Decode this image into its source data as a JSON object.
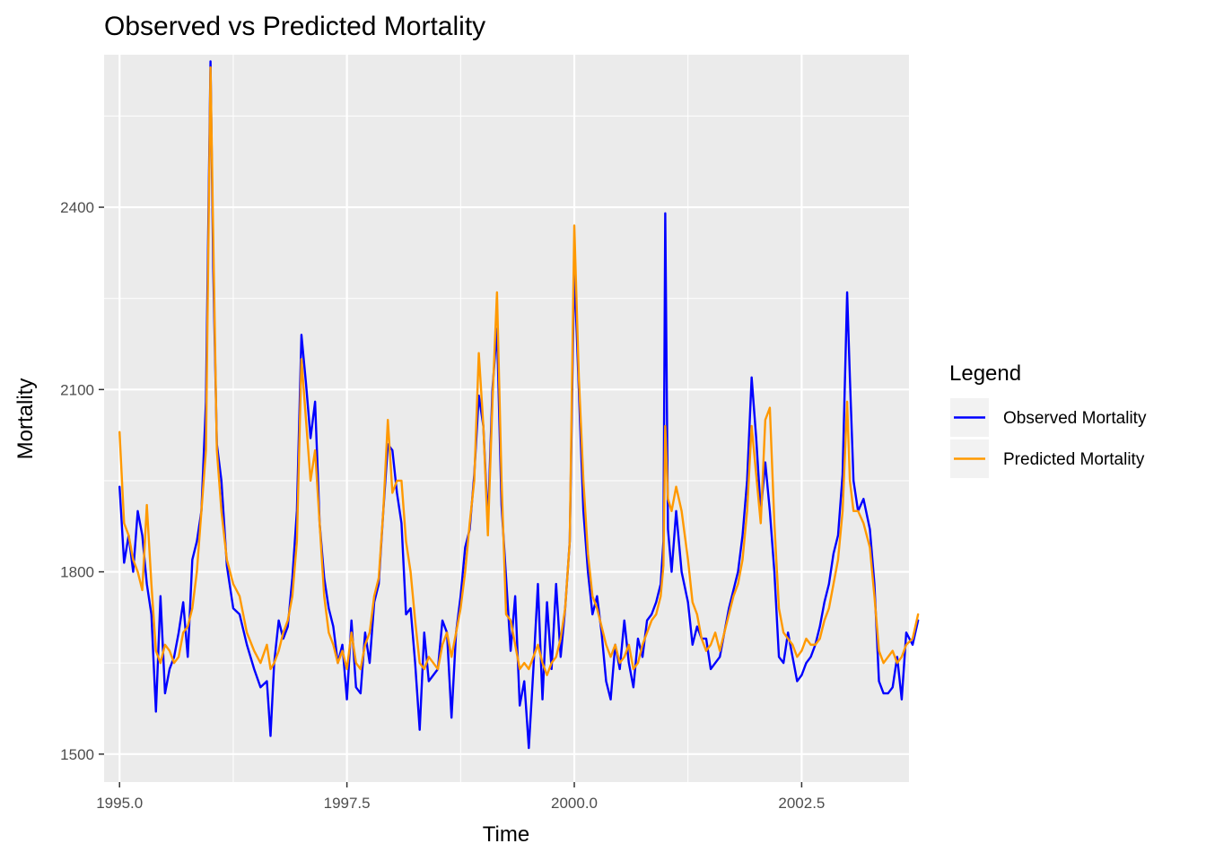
{
  "chart_data": {
    "type": "line",
    "title": "Observed vs Predicted Mortality",
    "xlabel": "Time",
    "ylabel": "Mortality",
    "xlim": [
      1994.83,
      2003.68
    ],
    "ylim": [
      1454,
      2651
    ],
    "x_ticks": [
      1995.0,
      1997.5,
      2000.0,
      2002.5
    ],
    "x_tick_labels": [
      "1995.0",
      "1997.5",
      "2000.0",
      "2002.5"
    ],
    "y_ticks": [
      1500,
      1800,
      2100,
      2400
    ],
    "y_tick_labels": [
      "1500",
      "1800",
      "2100",
      "2400"
    ],
    "grid": true,
    "legend": {
      "title": "Legend",
      "position": "right",
      "entries": [
        "Observed Mortality",
        "Predicted Mortality"
      ]
    },
    "series": [
      {
        "name": "Observed Mortality",
        "color": "#0000FF",
        "x": [
          1995.0,
          1995.05,
          1995.1,
          1995.15,
          1995.2,
          1995.25,
          1995.3,
          1995.35,
          1995.4,
          1995.45,
          1995.5,
          1995.55,
          1995.6,
          1995.65,
          1995.7,
          1995.75,
          1995.8,
          1995.85,
          1995.9,
          1995.95,
          1996.0,
          1996.03,
          1996.07,
          1996.12,
          1996.18,
          1996.25,
          1996.32,
          1996.4,
          1996.48,
          1996.55,
          1996.62,
          1996.66,
          1996.7,
          1996.75,
          1996.8,
          1996.85,
          1996.9,
          1996.95,
          1997.0,
          1997.05,
          1997.1,
          1997.15,
          1997.2,
          1997.25,
          1997.3,
          1997.35,
          1997.4,
          1997.45,
          1997.5,
          1997.55,
          1997.6,
          1997.65,
          1997.7,
          1997.75,
          1997.8,
          1997.85,
          1997.9,
          1997.95,
          1998.0,
          1998.05,
          1998.1,
          1998.15,
          1998.2,
          1998.25,
          1998.3,
          1998.35,
          1998.4,
          1998.45,
          1998.5,
          1998.55,
          1998.6,
          1998.65,
          1998.7,
          1998.75,
          1998.8,
          1998.85,
          1998.9,
          1998.95,
          1999.0,
          1999.05,
          1999.1,
          1999.15,
          1999.2,
          1999.25,
          1999.3,
          1999.35,
          1999.4,
          1999.45,
          1999.5,
          1999.55,
          1999.6,
          1999.65,
          1999.7,
          1999.75,
          1999.8,
          1999.85,
          1999.9,
          1999.95,
          2000.0,
          2000.05,
          2000.1,
          2000.15,
          2000.2,
          2000.25,
          2000.3,
          2000.35,
          2000.4,
          2000.45,
          2000.5,
          2000.55,
          2000.6,
          2000.65,
          2000.7,
          2000.75,
          2000.8,
          2000.85,
          2000.9,
          2000.95,
          2000.98,
          2001.0,
          2001.03,
          2001.07,
          2001.12,
          2001.18,
          2001.25,
          2001.3,
          2001.35,
          2001.4,
          2001.45,
          2001.5,
          2001.55,
          2001.6,
          2001.65,
          2001.7,
          2001.75,
          2001.8,
          2001.85,
          2001.9,
          2001.95,
          2002.0,
          2002.05,
          2002.1,
          2002.15,
          2002.2,
          2002.25,
          2002.3,
          2002.35,
          2002.4,
          2002.45,
          2002.5,
          2002.55,
          2002.6,
          2002.65,
          2002.7,
          2002.75,
          2002.8,
          2002.85,
          2002.9,
          2002.95,
          2003.0,
          2003.03,
          2003.07,
          2003.12,
          2003.18,
          2003.25,
          2003.3,
          2003.35,
          2003.4,
          2003.45,
          2003.5,
          2003.55,
          2003.6,
          2003.65,
          2003.72,
          2003.78
        ],
        "y": [
          1940,
          1815,
          1860,
          1800,
          1900,
          1860,
          1780,
          1730,
          1570,
          1760,
          1600,
          1640,
          1660,
          1700,
          1750,
          1660,
          1820,
          1850,
          1900,
          2080,
          2640,
          2300,
          2010,
          1950,
          1810,
          1740,
          1730,
          1680,
          1640,
          1610,
          1620,
          1530,
          1650,
          1720,
          1690,
          1710,
          1790,
          1900,
          2190,
          2110,
          2020,
          2080,
          1880,
          1790,
          1740,
          1710,
          1650,
          1680,
          1590,
          1720,
          1610,
          1600,
          1700,
          1650,
          1750,
          1780,
          1900,
          2010,
          2000,
          1930,
          1880,
          1730,
          1740,
          1650,
          1540,
          1700,
          1620,
          1630,
          1640,
          1720,
          1700,
          1560,
          1700,
          1760,
          1840,
          1870,
          1960,
          2090,
          2040,
          1880,
          2100,
          2200,
          1910,
          1790,
          1670,
          1760,
          1580,
          1620,
          1510,
          1640,
          1780,
          1590,
          1750,
          1640,
          1780,
          1660,
          1740,
          1850,
          2300,
          2100,
          1900,
          1800,
          1730,
          1760,
          1700,
          1620,
          1590,
          1680,
          1640,
          1720,
          1650,
          1610,
          1690,
          1660,
          1720,
          1730,
          1750,
          1780,
          1850,
          2390,
          1870,
          1800,
          1900,
          1800,
          1750,
          1680,
          1710,
          1690,
          1690,
          1640,
          1650,
          1660,
          1700,
          1740,
          1770,
          1800,
          1860,
          1950,
          2120,
          2020,
          1900,
          1980,
          1900,
          1800,
          1660,
          1650,
          1700,
          1660,
          1620,
          1630,
          1650,
          1660,
          1680,
          1710,
          1750,
          1780,
          1830,
          1860,
          1960,
          2260,
          2120,
          1950,
          1900,
          1920,
          1870,
          1780,
          1620,
          1600,
          1600,
          1610,
          1660,
          1590,
          1700,
          1680,
          1720
        ]
      },
      {
        "name": "Predicted Mortality",
        "color": "#FF9900",
        "x": [
          1995.0,
          1995.05,
          1995.1,
          1995.15,
          1995.2,
          1995.25,
          1995.3,
          1995.35,
          1995.4,
          1995.45,
          1995.5,
          1995.55,
          1995.6,
          1995.65,
          1995.7,
          1995.75,
          1995.8,
          1995.85,
          1995.9,
          1995.95,
          1996.0,
          1996.03,
          1996.07,
          1996.12,
          1996.18,
          1996.25,
          1996.32,
          1996.4,
          1996.48,
          1996.55,
          1996.62,
          1996.66,
          1996.7,
          1996.75,
          1996.8,
          1996.85,
          1996.9,
          1996.95,
          1997.0,
          1997.05,
          1997.1,
          1997.15,
          1997.2,
          1997.25,
          1997.3,
          1997.35,
          1997.4,
          1997.45,
          1997.5,
          1997.55,
          1997.6,
          1997.65,
          1997.7,
          1997.75,
          1997.8,
          1997.85,
          1997.9,
          1997.95,
          1998.0,
          1998.05,
          1998.1,
          1998.15,
          1998.2,
          1998.25,
          1998.3,
          1998.35,
          1998.4,
          1998.45,
          1998.5,
          1998.55,
          1998.6,
          1998.65,
          1998.7,
          1998.75,
          1998.8,
          1998.85,
          1998.9,
          1998.95,
          1999.0,
          1999.05,
          1999.1,
          1999.15,
          1999.2,
          1999.25,
          1999.3,
          1999.35,
          1999.4,
          1999.45,
          1999.5,
          1999.55,
          1999.6,
          1999.65,
          1999.7,
          1999.75,
          1999.8,
          1999.85,
          1999.9,
          1999.95,
          2000.0,
          2000.05,
          2000.1,
          2000.15,
          2000.2,
          2000.25,
          2000.3,
          2000.35,
          2000.4,
          2000.45,
          2000.5,
          2000.55,
          2000.6,
          2000.65,
          2000.7,
          2000.75,
          2000.8,
          2000.85,
          2000.9,
          2000.95,
          2000.98,
          2001.0,
          2001.03,
          2001.07,
          2001.12,
          2001.18,
          2001.25,
          2001.3,
          2001.35,
          2001.4,
          2001.45,
          2001.5,
          2001.55,
          2001.6,
          2001.65,
          2001.7,
          2001.75,
          2001.8,
          2001.85,
          2001.9,
          2001.95,
          2002.0,
          2002.05,
          2002.1,
          2002.15,
          2002.2,
          2002.25,
          2002.3,
          2002.35,
          2002.4,
          2002.45,
          2002.5,
          2002.55,
          2002.6,
          2002.65,
          2002.7,
          2002.75,
          2002.8,
          2002.85,
          2002.9,
          2002.95,
          2003.0,
          2003.03,
          2003.07,
          2003.12,
          2003.18,
          2003.25,
          2003.3,
          2003.35,
          2003.4,
          2003.45,
          2003.5,
          2003.55,
          2003.6,
          2003.65,
          2003.72,
          2003.78
        ],
        "y": [
          2030,
          1880,
          1860,
          1820,
          1800,
          1770,
          1910,
          1780,
          1670,
          1650,
          1680,
          1670,
          1650,
          1660,
          1700,
          1710,
          1740,
          1800,
          1900,
          2000,
          2630,
          2350,
          2000,
          1900,
          1820,
          1780,
          1760,
          1700,
          1670,
          1650,
          1680,
          1640,
          1650,
          1670,
          1700,
          1720,
          1760,
          1850,
          2150,
          2050,
          1950,
          2000,
          1880,
          1760,
          1700,
          1680,
          1650,
          1670,
          1640,
          1700,
          1650,
          1640,
          1680,
          1700,
          1760,
          1790,
          1900,
          2050,
          1930,
          1950,
          1950,
          1850,
          1800,
          1720,
          1650,
          1640,
          1660,
          1650,
          1640,
          1680,
          1700,
          1660,
          1700,
          1740,
          1800,
          1880,
          1950,
          2160,
          2040,
          1860,
          2080,
          2260,
          1950,
          1730,
          1720,
          1680,
          1640,
          1650,
          1640,
          1660,
          1680,
          1650,
          1630,
          1650,
          1660,
          1690,
          1740,
          1850,
          2370,
          2120,
          1950,
          1830,
          1760,
          1740,
          1710,
          1680,
          1660,
          1680,
          1650,
          1660,
          1680,
          1640,
          1650,
          1680,
          1700,
          1720,
          1730,
          1760,
          1810,
          2040,
          1920,
          1900,
          1940,
          1900,
          1820,
          1750,
          1730,
          1690,
          1670,
          1680,
          1700,
          1670,
          1700,
          1730,
          1760,
          1780,
          1820,
          1900,
          2040,
          1960,
          1880,
          2050,
          2070,
          1880,
          1740,
          1700,
          1690,
          1680,
          1660,
          1670,
          1690,
          1680,
          1680,
          1690,
          1720,
          1740,
          1780,
          1820,
          1900,
          2080,
          1950,
          1900,
          1900,
          1880,
          1840,
          1760,
          1670,
          1650,
          1660,
          1670,
          1650,
          1660,
          1680,
          1690,
          1730
        ]
      }
    ]
  }
}
